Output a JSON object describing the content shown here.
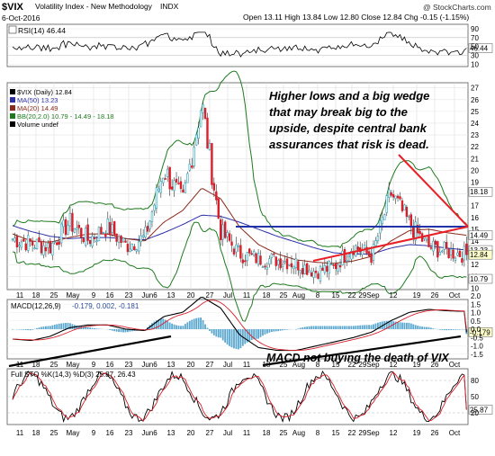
{
  "header": {
    "symbol": "$VIX",
    "name": "Volatility Index - New Methodology",
    "exchange": "INDX",
    "date": "6-Oct-2016",
    "ohlc_label": "Open 13.11 High 13.84 Low 12.80 Close 12.84 Chg -0.15 (-1.15%)",
    "watermark": "@ StockCharts.com"
  },
  "panels": {
    "rsi": {
      "label": "RSI(14) 46.44",
      "value_label": "46.44",
      "ticks": [
        "90",
        "70",
        "50",
        "30",
        "10"
      ]
    },
    "price": {
      "legend": [
        "$VIX (Daily) 12.84",
        "MA(50) 13.23",
        "MA(20) 14.49",
        "BB(20,2.0) 10.79 - 14.49 - 18.18",
        "Volume undef"
      ],
      "ticks": [
        "27",
        "26",
        "25",
        "24",
        "23",
        "22",
        "21",
        "20",
        "19",
        "18",
        "17",
        "16",
        "15",
        "14",
        "13",
        "12",
        "11",
        "10"
      ],
      "value_labels": {
        "bb_upper": "18.18",
        "ma20": "14.49",
        "ma50": "13.23",
        "close": "12.84",
        "bb_lower": "10.79"
      }
    },
    "macd": {
      "label": "MACD(12,26,9)",
      "values": "-0.179, 0.002, -0.181",
      "value_label": "-0.179",
      "ticks": [
        "2.0",
        "1.5",
        "1.0",
        "0.5",
        "0.0",
        "-0.5",
        "-1.0",
        "-1.5"
      ]
    },
    "sto": {
      "label": "Full STO %K(14,3) %D(3) 25.87, 26.43",
      "value_label": "25.87",
      "ticks": [
        "80",
        "50",
        "20"
      ]
    }
  },
  "x_axis": {
    "labels": [
      "11",
      "18",
      "25",
      "May",
      "9",
      "16",
      "23",
      "Jun6",
      "13",
      "20",
      "27",
      "Jul",
      "11",
      "18",
      "25",
      "Aug",
      "8",
      "15",
      "22",
      "29Sep",
      "12",
      "19",
      "26",
      "Oct"
    ]
  },
  "annotations": {
    "price_note": "Higher lows and a big wedge that may break big to the upside, despite central bank assurances that risk is dead.",
    "macd_note": "MACD not buying the death of VIX"
  },
  "colors": {
    "up": "#2aa2b8",
    "down": "#d81f2a",
    "ma50": "#2d2fa8",
    "ma20": "#8b2a1a",
    "bb": "#1f7a1f",
    "trend": "#e81f26",
    "support": "#2233aa"
  },
  "chart_data": {
    "type": "candlestick",
    "title": "$VIX Volatility Index - New Methodology",
    "x": [
      "Apr 11",
      "Apr 18",
      "Apr 25",
      "May 2",
      "May 9",
      "May 16",
      "May 23",
      "Jun 6",
      "Jun 13",
      "Jun 20",
      "Jun 27",
      "Jul 5",
      "Jul 11",
      "Jul 18",
      "Jul 25",
      "Aug 1",
      "Aug 8",
      "Aug 15",
      "Aug 22",
      "Aug 29",
      "Sep 12",
      "Sep 19",
      "Sep 26",
      "Oct 3",
      "Oct 6"
    ],
    "series": [
      {
        "name": "$VIX (Daily)",
        "values": [
          14.2,
          13.8,
          13.5,
          15.6,
          14.1,
          15.2,
          13.6,
          14.3,
          20.1,
          17.3,
          25.8,
          14.8,
          12.9,
          12.5,
          12.4,
          12.1,
          11.4,
          11.8,
          13.6,
          12.7,
          18.1,
          15.4,
          13.5,
          13.1,
          12.84
        ]
      },
      {
        "name": "MA(50)",
        "values": [
          15.3,
          14.8,
          14.4,
          14.2,
          14.3,
          14.3,
          14.2,
          14.1,
          14.7,
          15.4,
          16.2,
          16.1,
          15.6,
          15.0,
          14.4,
          13.9,
          13.4,
          13.0,
          12.9,
          12.9,
          13.4,
          13.7,
          13.6,
          13.4,
          13.23
        ]
      },
      {
        "name": "MA(20)",
        "values": [
          14.6,
          14.0,
          13.9,
          14.3,
          14.6,
          14.6,
          14.2,
          14.0,
          15.6,
          16.6,
          18.5,
          17.6,
          15.2,
          13.7,
          12.9,
          12.4,
          12.2,
          12.1,
          12.3,
          12.7,
          14.0,
          14.9,
          15.0,
          14.7,
          14.49
        ]
      }
    ],
    "macd": {
      "macd": -0.179,
      "signal": 0.002,
      "histogram": -0.181
    },
    "stochastic": {
      "k": 25.87,
      "d": 26.43
    },
    "rsi": 46.44,
    "bollinger": {
      "lower": 10.79,
      "middle": 14.49,
      "upper": 18.18
    },
    "ylim": [
      10,
      27
    ]
  }
}
